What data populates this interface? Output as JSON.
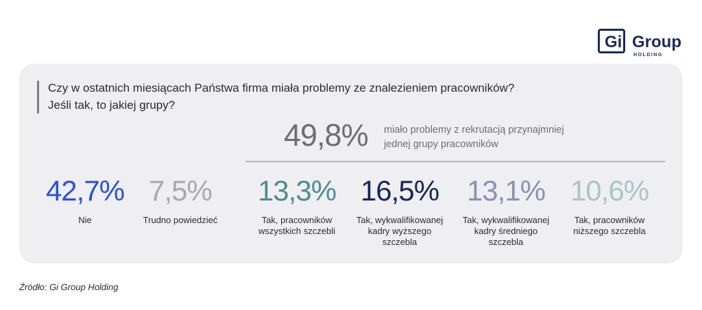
{
  "logo": {
    "mark": "Gi",
    "name": "Group",
    "sub": "HOLDING"
  },
  "chart_data": {
    "type": "table",
    "title_lines": [
      "Czy w ostatnich miesiącach Państwa firma miała problemy ze znalezieniem pracowników?",
      "Jeśli tak, to jakiej grupy?"
    ],
    "summary": {
      "value": "49,8%",
      "text_lines": [
        "miało problemy z rekrutacją przynajmniej",
        "jednej grupy pracowników"
      ]
    },
    "categories": [
      "Nie",
      "Trudno powiedzieć",
      "Tak, pracowników wszystkich szczebli",
      "Tak, wykwalifikowanej kadry wyższego szczebla",
      "Tak, wykwalifikowanej kadry średniego szczebla",
      "Tak, pracowników niższego szczebla"
    ],
    "category_lines": [
      [
        "Nie"
      ],
      [
        "Trudno powiedzieć"
      ],
      [
        "Tak, pracowników",
        "wszystkich szczebli"
      ],
      [
        "Tak, wykwalifikowanej",
        "kadry wyższego",
        "szczebla"
      ],
      [
        "Tak, wykwalifikowanej",
        "kadry średniego",
        "szczebla"
      ],
      [
        "Tak, pracowników",
        "niższego szczebla"
      ]
    ],
    "values": [
      42.7,
      7.5,
      13.3,
      16.5,
      13.1,
      10.6
    ],
    "value_labels": [
      "42,7%",
      "7,5%",
      "13,3%",
      "16,5%",
      "13,1%",
      "10,6%"
    ],
    "colors": [
      "#2b4ee0",
      "#a9a9ad",
      "#4f8d93",
      "#17265a",
      "#8a90b8",
      "#a9c4c8"
    ]
  },
  "source": "Źródło: Gi Group Holding"
}
